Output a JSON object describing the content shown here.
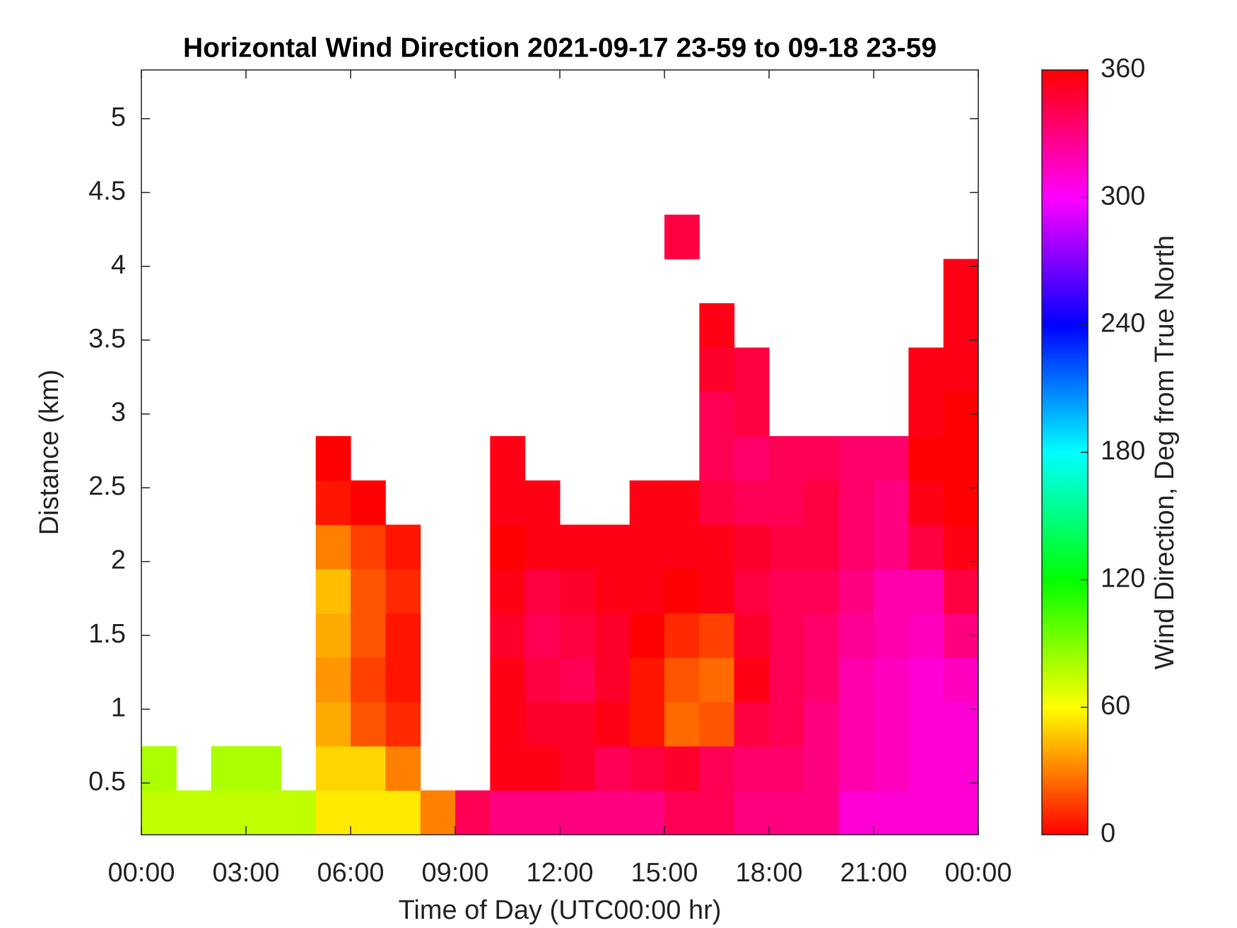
{
  "chart_data": {
    "type": "heatmap",
    "title": "Horizontal Wind Direction 2021-09-17 23-59 to 09-18 23-59",
    "x_label": "Time of Day (UTC00:00 hr)",
    "y_label": "Distance (km)",
    "colorbar_label": "Wind Direction, Deg from True North",
    "colormap": "hsv",
    "x_bins": [
      0,
      1,
      2,
      3,
      4,
      5,
      6,
      7,
      8,
      9,
      10,
      11,
      12,
      13,
      14,
      15,
      16,
      17,
      18,
      19,
      20,
      21,
      22,
      23,
      24
    ],
    "y_bins": [
      0.15,
      0.45,
      0.75,
      1.05,
      1.35,
      1.65,
      1.95,
      2.25,
      2.55,
      2.85,
      3.15,
      3.45,
      3.75,
      4.05,
      4.35
    ],
    "values": [
      [
        75,
        75,
        75,
        75,
        75,
        55,
        55,
        55,
        30,
        340,
        330,
        330,
        330,
        330,
        330,
        340,
        340,
        330,
        330,
        330,
        310,
        310,
        310,
        310
      ],
      [
        80,
        null,
        80,
        80,
        null,
        50,
        50,
        30,
        null,
        null,
        355,
        355,
        350,
        340,
        345,
        350,
        340,
        335,
        335,
        330,
        320,
        315,
        310,
        310
      ],
      [
        null,
        null,
        null,
        null,
        null,
        40,
        20,
        10,
        null,
        null,
        355,
        350,
        350,
        355,
        5,
        25,
        20,
        345,
        340,
        330,
        320,
        315,
        310,
        310
      ],
      [
        null,
        null,
        null,
        null,
        null,
        35,
        15,
        5,
        null,
        null,
        355,
        345,
        340,
        350,
        5,
        20,
        25,
        355,
        340,
        335,
        320,
        315,
        310,
        315
      ],
      [
        null,
        null,
        null,
        null,
        null,
        40,
        20,
        5,
        null,
        null,
        350,
        340,
        345,
        350,
        0,
        10,
        15,
        350,
        340,
        335,
        325,
        320,
        315,
        330
      ],
      [
        null,
        null,
        null,
        null,
        null,
        45,
        20,
        10,
        null,
        null,
        355,
        345,
        350,
        355,
        355,
        0,
        355,
        345,
        340,
        340,
        330,
        320,
        320,
        345
      ],
      [
        null,
        null,
        null,
        null,
        null,
        30,
        15,
        5,
        null,
        null,
        0,
        355,
        355,
        355,
        355,
        355,
        355,
        350,
        345,
        345,
        335,
        330,
        345,
        355
      ],
      [
        null,
        null,
        null,
        null,
        null,
        5,
        0,
        null,
        null,
        null,
        355,
        355,
        null,
        null,
        355,
        355,
        345,
        340,
        340,
        345,
        335,
        330,
        355,
        0
      ],
      [
        null,
        null,
        null,
        null,
        null,
        0,
        null,
        null,
        null,
        null,
        355,
        null,
        null,
        null,
        null,
        null,
        340,
        335,
        340,
        340,
        335,
        335,
        0,
        0
      ],
      [
        null,
        null,
        null,
        null,
        null,
        null,
        null,
        null,
        null,
        null,
        null,
        null,
        null,
        null,
        null,
        null,
        340,
        345,
        null,
        null,
        null,
        null,
        355,
        0
      ],
      [
        null,
        null,
        null,
        null,
        null,
        null,
        null,
        null,
        null,
        null,
        null,
        null,
        null,
        null,
        null,
        null,
        350,
        345,
        null,
        null,
        null,
        null,
        355,
        355
      ],
      [
        null,
        null,
        null,
        null,
        null,
        null,
        null,
        null,
        null,
        null,
        null,
        null,
        null,
        null,
        null,
        null,
        355,
        null,
        null,
        null,
        null,
        null,
        null,
        355
      ],
      [
        null,
        null,
        null,
        null,
        null,
        null,
        null,
        null,
        null,
        null,
        null,
        null,
        null,
        null,
        null,
        null,
        null,
        null,
        null,
        null,
        null,
        null,
        null,
        355
      ],
      [
        null,
        null,
        null,
        null,
        null,
        null,
        null,
        null,
        null,
        null,
        null,
        null,
        null,
        null,
        null,
        345,
        null,
        null,
        null,
        null,
        null,
        null,
        null,
        null
      ]
    ],
    "xlim": [
      0,
      24
    ],
    "xticks": [
      {
        "value": 0,
        "label": "00:00"
      },
      {
        "value": 3,
        "label": "03:00"
      },
      {
        "value": 6,
        "label": "06:00"
      },
      {
        "value": 9,
        "label": "09:00"
      },
      {
        "value": 12,
        "label": "12:00"
      },
      {
        "value": 15,
        "label": "15:00"
      },
      {
        "value": 18,
        "label": "18:00"
      },
      {
        "value": 21,
        "label": "21:00"
      },
      {
        "value": 24,
        "label": "00:00"
      }
    ],
    "ylim": [
      0.15,
      5.33
    ],
    "yticks": [
      0.5,
      1,
      1.5,
      2,
      2.5,
      3,
      3.5,
      4,
      4.5,
      5
    ],
    "clim": [
      0,
      360
    ],
    "cticks": [
      0,
      60,
      120,
      180,
      240,
      300,
      360
    ]
  }
}
